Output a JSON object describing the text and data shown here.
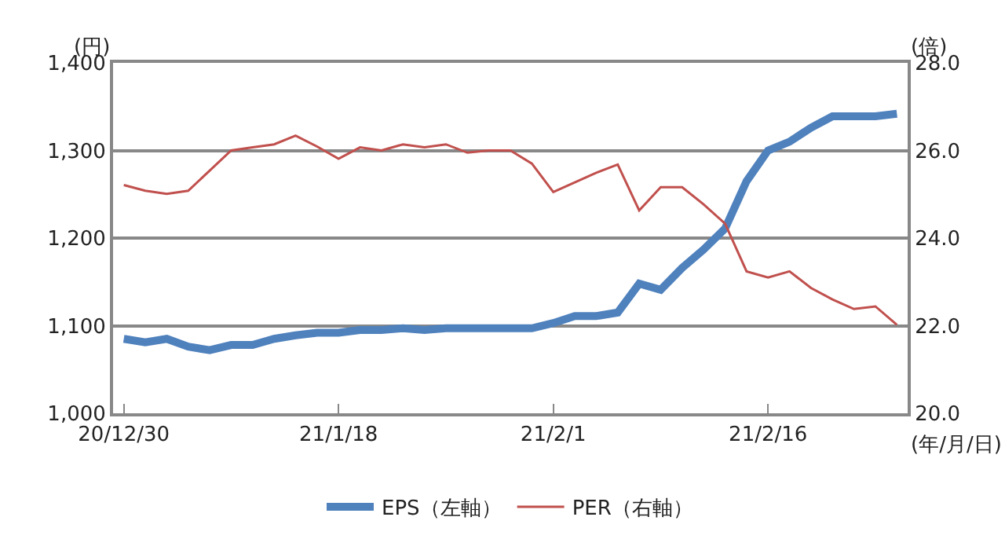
{
  "chart_data": {
    "type": "line",
    "ylabel": "(円)",
    "y2label": "(倍)",
    "xlabel": "(年/月/日)",
    "categories": [
      "20/12/30",
      null,
      null,
      null,
      null,
      null,
      null,
      null,
      null,
      null,
      "21/1/18",
      null,
      null,
      null,
      null,
      null,
      null,
      null,
      null,
      null,
      "21/2/1",
      null,
      null,
      null,
      null,
      null,
      null,
      null,
      null,
      null,
      "21/2/16",
      null,
      null,
      null,
      null,
      null,
      null
    ],
    "series": [
      {
        "name": "EPS（左軸）",
        "color": "#4f81bd",
        "values": [
          1085,
          1081,
          1085,
          1076,
          1072,
          1078,
          1078,
          1085,
          1089,
          1092,
          1092,
          1095,
          1095,
          1097,
          1095,
          1097,
          1097,
          1097,
          1097,
          1097,
          1103,
          1111,
          1111,
          1115,
          1148,
          1141,
          1166,
          1187,
          1211,
          1265,
          1300,
          1310,
          1326,
          1339,
          1339,
          1339,
          1342
        ]
      },
      {
        "name": "PER（右軸）",
        "color": "#c0504d",
        "axis": "y2",
        "values": [
          25.21,
          25.08,
          25.01,
          25.08,
          25.54,
          26.0,
          26.07,
          26.14,
          26.34,
          26.09,
          25.81,
          26.07,
          26.0,
          26.14,
          26.07,
          26.14,
          25.95,
          26.0,
          26.0,
          25.7,
          25.05,
          25.27,
          25.49,
          25.68,
          24.63,
          25.16,
          25.16,
          24.77,
          24.33,
          23.24,
          23.1,
          23.24,
          22.86,
          22.6,
          22.38,
          22.44,
          22.02
        ]
      }
    ],
    "ylim": [
      1000,
      1400
    ],
    "yticks": [
      {
        "value": 1000,
        "label": "1,000"
      },
      {
        "value": 1100,
        "label": "1,100"
      },
      {
        "value": 1200,
        "label": "1,200"
      },
      {
        "value": 1300,
        "label": "1,300"
      },
      {
        "value": 1400,
        "label": "1,400"
      }
    ],
    "y2lim": [
      20,
      28
    ],
    "y2ticks": [
      {
        "value": 20,
        "label": "20.0"
      },
      {
        "value": 22,
        "label": "22.0"
      },
      {
        "value": 24,
        "label": "24.0"
      },
      {
        "value": 26,
        "label": "26.0"
      },
      {
        "value": 28,
        "label": "28.0"
      }
    ],
    "grid": "y",
    "legend": "bottom",
    "marker": "none",
    "line_style": "solid"
  }
}
